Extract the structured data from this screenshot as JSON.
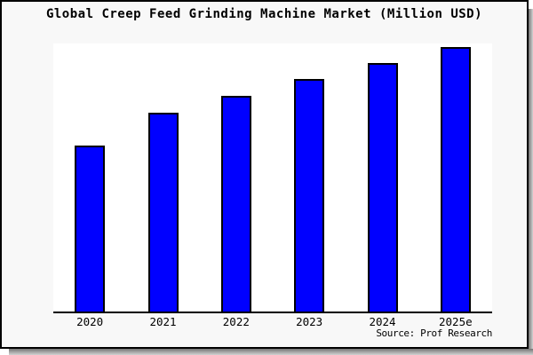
{
  "chart_data": {
    "type": "bar",
    "title": "Global Creep Feed Grinding Machine Market (Million USD)",
    "categories": [
      "2020",
      "2021",
      "2022",
      "2023",
      "2024",
      "2025e"
    ],
    "values": [
      187,
      224,
      243,
      262,
      280,
      298
    ],
    "value_note": "no y-axis ticks or data labels shown; values are bar heights in pixels relative to plot height",
    "xlabel": "",
    "ylabel": "",
    "ylim": [
      0,
      302
    ],
    "grid": false,
    "legend": false,
    "bar_color": "#0000ff",
    "bar_outline_color": "#000000",
    "annotation": "Source: Prof Research"
  },
  "colors": {
    "paper_background": "#f8f8f8",
    "plot_background": "#ffffff",
    "frame": "#000000",
    "bar": "#0000ff",
    "shadow": "#757575"
  }
}
